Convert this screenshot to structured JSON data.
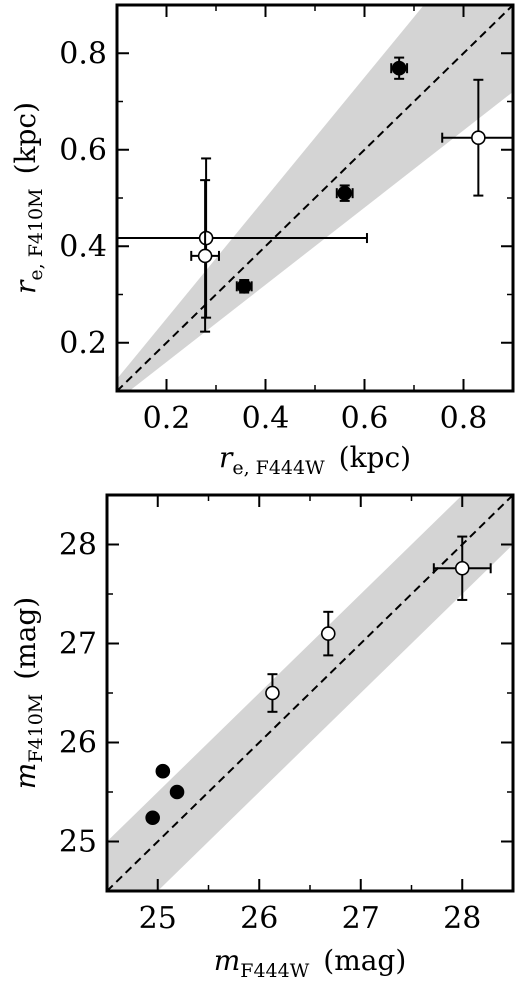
{
  "band_color": "#d4d4d4",
  "chart_data": [
    {
      "type": "scatter",
      "xlabel": {
        "sym": "r",
        "sub": "e, F444W",
        "unit": "(kpc)"
      },
      "ylabel": {
        "sym": "r",
        "sub": "e, F410M",
        "unit": "(kpc)"
      },
      "xlim": [
        0.1,
        0.9
      ],
      "ylim": [
        0.1,
        0.9
      ],
      "xticks": [
        0.2,
        0.4,
        0.6,
        0.8
      ],
      "yticks": [
        0.2,
        0.4,
        0.6,
        0.8
      ],
      "xtick_labels": [
        "0.2",
        "0.4",
        "0.6",
        "0.8"
      ],
      "ytick_labels": [
        "0.2",
        "0.4",
        "0.6",
        "0.8"
      ],
      "one_to_one_line": true,
      "band": {
        "lower_factor": 0.8,
        "upper_factor": 1.25
      },
      "points": [
        {
          "x": 0.28,
          "y": 0.417,
          "xerr": 0.325,
          "yerr": 0.165,
          "filled": false
        },
        {
          "x": 0.278,
          "y": 0.38,
          "xerr": 0.028,
          "yerr": 0.157,
          "filled": false
        },
        {
          "x": 0.357,
          "y": 0.317,
          "xerr": 0.015,
          "yerr": 0.013,
          "filled": true
        },
        {
          "x": 0.56,
          "y": 0.51,
          "xerr": 0.016,
          "yerr": 0.016,
          "filled": true
        },
        {
          "x": 0.67,
          "y": 0.769,
          "xerr": 0.016,
          "yerr": 0.022,
          "filled": true
        },
        {
          "x": 0.83,
          "y": 0.625,
          "xerr": 0.073,
          "yerr": 0.12,
          "filled": false
        }
      ]
    },
    {
      "type": "scatter",
      "xlabel": {
        "sym": "m",
        "sub": "F444W",
        "unit": "(mag)"
      },
      "ylabel": {
        "sym": "m",
        "sub": "F410M",
        "unit": "(mag)"
      },
      "xlim": [
        24.5,
        28.5
      ],
      "ylim": [
        24.5,
        28.5
      ],
      "xticks": [
        25,
        26,
        27,
        28
      ],
      "yticks": [
        25,
        26,
        27,
        28
      ],
      "xtick_labels": [
        "25",
        "26",
        "27",
        "28"
      ],
      "ytick_labels": [
        "25",
        "26",
        "27",
        "28"
      ],
      "one_to_one_line": true,
      "band": {
        "lower_offset": -0.5,
        "upper_offset": 0.5
      },
      "points": [
        {
          "x": 24.95,
          "y": 25.24,
          "xerr": 0,
          "yerr": 0,
          "filled": true
        },
        {
          "x": 25.05,
          "y": 25.71,
          "xerr": 0,
          "yerr": 0,
          "filled": true
        },
        {
          "x": 25.19,
          "y": 25.5,
          "xerr": 0,
          "yerr": 0,
          "filled": true
        },
        {
          "x": 26.13,
          "y": 26.5,
          "xerr": 0,
          "yerr": 0.19,
          "filled": false
        },
        {
          "x": 26.68,
          "y": 27.1,
          "xerr": 0,
          "yerr": 0.22,
          "filled": false
        },
        {
          "x": 28.0,
          "y": 27.76,
          "xerr": 0.28,
          "yerr": 0.32,
          "filled": false
        }
      ]
    }
  ]
}
